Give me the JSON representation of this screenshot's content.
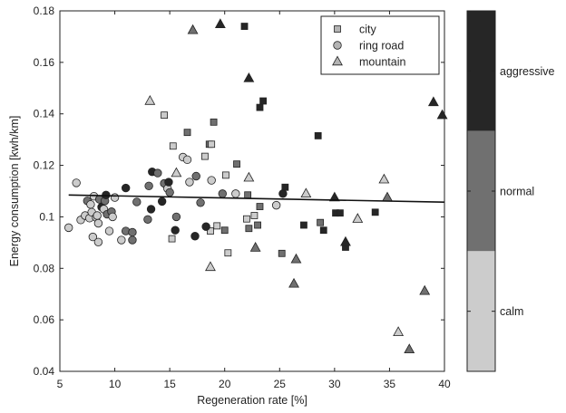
{
  "chart_data": {
    "type": "scatter",
    "xlabel": "Regeneration rate [%]",
    "ylabel": "Energy consumption [kwh/km]",
    "xlim": [
      5,
      40
    ],
    "ylim": [
      0.04,
      0.18
    ],
    "x_ticks": [
      5,
      10,
      15,
      20,
      25,
      30,
      35,
      40
    ],
    "x_tick_labels": [
      "5",
      "10",
      "15",
      "20",
      "25",
      "30",
      "35",
      "40"
    ],
    "y_ticks": [
      0.04,
      0.06,
      0.08,
      0.1,
      0.12,
      0.14,
      0.16,
      0.18
    ],
    "y_tick_labels": [
      "0.04",
      "0.06",
      "0.08",
      "0.1",
      "0.12",
      "0.14",
      "0.16",
      "0.18"
    ],
    "grid": false,
    "legend_position": "top-right",
    "legend": [
      {
        "label": "city",
        "marker": "square"
      },
      {
        "label": "ring road",
        "marker": "circle"
      },
      {
        "label": "mountain",
        "marker": "triangle"
      }
    ],
    "style_colors": {
      "calm": "#cccccc",
      "normal": "#707070",
      "aggressive": "#262626"
    },
    "colorbar": {
      "labels": [
        "aggressive",
        "normal",
        "calm"
      ],
      "colors": [
        "#262626",
        "#707070",
        "#cccccc"
      ]
    },
    "trend_line": {
      "x": [
        5.8,
        40
      ],
      "y": [
        0.1085,
        0.1057
      ]
    },
    "series": [
      {
        "marker": "square",
        "points": [
          {
            "x": 14.5,
            "y": 0.1395,
            "style": "calm"
          },
          {
            "x": 15.3,
            "y": 0.1275,
            "style": "calm"
          },
          {
            "x": 16.6,
            "y": 0.1328,
            "style": "normal"
          },
          {
            "x": 18.2,
            "y": 0.1235,
            "style": "calm"
          },
          {
            "x": 18.6,
            "y": 0.1282,
            "style": "normal"
          },
          {
            "x": 18.8,
            "y": 0.1282,
            "style": "calm"
          },
          {
            "x": 19.0,
            "y": 0.1368,
            "style": "normal"
          },
          {
            "x": 20.1,
            "y": 0.1162,
            "style": "calm"
          },
          {
            "x": 21.1,
            "y": 0.1205,
            "style": "normal"
          },
          {
            "x": 21.8,
            "y": 0.174,
            "style": "aggressive"
          },
          {
            "x": 22.1,
            "y": 0.1085,
            "style": "normal"
          },
          {
            "x": 22.0,
            "y": 0.0992,
            "style": "calm"
          },
          {
            "x": 22.2,
            "y": 0.0955,
            "style": "normal"
          },
          {
            "x": 22.7,
            "y": 0.1005,
            "style": "calm"
          },
          {
            "x": 23.2,
            "y": 0.104,
            "style": "normal"
          },
          {
            "x": 23.0,
            "y": 0.0968,
            "style": "normal"
          },
          {
            "x": 23.2,
            "y": 0.1425,
            "style": "aggressive"
          },
          {
            "x": 23.5,
            "y": 0.145,
            "style": "aggressive"
          },
          {
            "x": 15.2,
            "y": 0.0915,
            "style": "calm"
          },
          {
            "x": 18.7,
            "y": 0.0945,
            "style": "calm"
          },
          {
            "x": 19.3,
            "y": 0.0965,
            "style": "calm"
          },
          {
            "x": 20.0,
            "y": 0.0948,
            "style": "normal"
          },
          {
            "x": 20.3,
            "y": 0.086,
            "style": "calm"
          },
          {
            "x": 25.2,
            "y": 0.0858,
            "style": "normal"
          },
          {
            "x": 25.5,
            "y": 0.1115,
            "style": "aggressive"
          },
          {
            "x": 27.2,
            "y": 0.0968,
            "style": "aggressive"
          },
          {
            "x": 28.5,
            "y": 0.1315,
            "style": "aggressive"
          },
          {
            "x": 28.7,
            "y": 0.0978,
            "style": "normal"
          },
          {
            "x": 29.0,
            "y": 0.0948,
            "style": "aggressive"
          },
          {
            "x": 30.1,
            "y": 0.1015,
            "style": "aggressive"
          },
          {
            "x": 30.5,
            "y": 0.1015,
            "style": "aggressive"
          },
          {
            "x": 31.0,
            "y": 0.0882,
            "style": "aggressive"
          },
          {
            "x": 33.7,
            "y": 0.1018,
            "style": "aggressive"
          }
        ]
      },
      {
        "marker": "circle",
        "points": [
          {
            "x": 5.8,
            "y": 0.0958,
            "style": "calm"
          },
          {
            "x": 6.5,
            "y": 0.1132,
            "style": "calm"
          },
          {
            "x": 6.9,
            "y": 0.0988,
            "style": "calm"
          },
          {
            "x": 7.3,
            "y": 0.1005,
            "style": "calm"
          },
          {
            "x": 7.5,
            "y": 0.1062,
            "style": "normal"
          },
          {
            "x": 7.7,
            "y": 0.0995,
            "style": "calm"
          },
          {
            "x": 7.8,
            "y": 0.1048,
            "style": "calm"
          },
          {
            "x": 7.9,
            "y": 0.1018,
            "style": "calm"
          },
          {
            "x": 8.0,
            "y": 0.0922,
            "style": "calm"
          },
          {
            "x": 8.1,
            "y": 0.108,
            "style": "calm"
          },
          {
            "x": 8.3,
            "y": 0.0998,
            "style": "calm"
          },
          {
            "x": 8.4,
            "y": 0.1005,
            "style": "calm"
          },
          {
            "x": 8.5,
            "y": 0.0975,
            "style": "calm"
          },
          {
            "x": 8.5,
            "y": 0.0902,
            "style": "calm"
          },
          {
            "x": 8.6,
            "y": 0.1068,
            "style": "normal"
          },
          {
            "x": 8.8,
            "y": 0.1038,
            "style": "aggressive"
          },
          {
            "x": 9.0,
            "y": 0.103,
            "style": "calm"
          },
          {
            "x": 9.1,
            "y": 0.1062,
            "style": "normal"
          },
          {
            "x": 9.2,
            "y": 0.1085,
            "style": "aggressive"
          },
          {
            "x": 9.3,
            "y": 0.101,
            "style": "normal"
          },
          {
            "x": 9.5,
            "y": 0.0945,
            "style": "calm"
          },
          {
            "x": 9.7,
            "y": 0.102,
            "style": "normal"
          },
          {
            "x": 9.8,
            "y": 0.1,
            "style": "calm"
          },
          {
            "x": 10.0,
            "y": 0.1075,
            "style": "calm"
          },
          {
            "x": 10.6,
            "y": 0.091,
            "style": "calm"
          },
          {
            "x": 11.0,
            "y": 0.0945,
            "style": "normal"
          },
          {
            "x": 11.0,
            "y": 0.1112,
            "style": "aggressive"
          },
          {
            "x": 11.6,
            "y": 0.094,
            "style": "normal"
          },
          {
            "x": 11.6,
            "y": 0.091,
            "style": "normal"
          },
          {
            "x": 12.0,
            "y": 0.1058,
            "style": "normal"
          },
          {
            "x": 13.0,
            "y": 0.099,
            "style": "normal"
          },
          {
            "x": 13.1,
            "y": 0.112,
            "style": "normal"
          },
          {
            "x": 13.4,
            "y": 0.1175,
            "style": "aggressive"
          },
          {
            "x": 13.3,
            "y": 0.103,
            "style": "aggressive"
          },
          {
            "x": 13.9,
            "y": 0.117,
            "style": "normal"
          },
          {
            "x": 14.3,
            "y": 0.106,
            "style": "aggressive"
          },
          {
            "x": 14.5,
            "y": 0.113,
            "style": "normal"
          },
          {
            "x": 14.8,
            "y": 0.111,
            "style": "calm"
          },
          {
            "x": 14.9,
            "y": 0.1135,
            "style": "aggressive"
          },
          {
            "x": 15.0,
            "y": 0.1095,
            "style": "normal"
          },
          {
            "x": 15.5,
            "y": 0.0948,
            "style": "aggressive"
          },
          {
            "x": 15.6,
            "y": 0.1,
            "style": "normal"
          },
          {
            "x": 16.2,
            "y": 0.1232,
            "style": "calm"
          },
          {
            "x": 16.6,
            "y": 0.1222,
            "style": "calm"
          },
          {
            "x": 16.8,
            "y": 0.1135,
            "style": "calm"
          },
          {
            "x": 17.4,
            "y": 0.1158,
            "style": "normal"
          },
          {
            "x": 17.3,
            "y": 0.0925,
            "style": "aggressive"
          },
          {
            "x": 17.8,
            "y": 0.1055,
            "style": "normal"
          },
          {
            "x": 18.3,
            "y": 0.0962,
            "style": "aggressive"
          },
          {
            "x": 18.8,
            "y": 0.1142,
            "style": "calm"
          },
          {
            "x": 19.8,
            "y": 0.109,
            "style": "normal"
          },
          {
            "x": 21.0,
            "y": 0.109,
            "style": "calm"
          },
          {
            "x": 25.3,
            "y": 0.109,
            "style": "aggressive"
          },
          {
            "x": 24.7,
            "y": 0.1045,
            "style": "calm"
          }
        ]
      },
      {
        "marker": "triangle",
        "points": [
          {
            "x": 13.2,
            "y": 0.145,
            "style": "calm"
          },
          {
            "x": 15.6,
            "y": 0.117,
            "style": "calm"
          },
          {
            "x": 17.1,
            "y": 0.1725,
            "style": "normal"
          },
          {
            "x": 19.6,
            "y": 0.1748,
            "style": "aggressive"
          },
          {
            "x": 18.7,
            "y": 0.0805,
            "style": "calm"
          },
          {
            "x": 22.2,
            "y": 0.1538,
            "style": "aggressive"
          },
          {
            "x": 22.2,
            "y": 0.1152,
            "style": "calm"
          },
          {
            "x": 22.8,
            "y": 0.088,
            "style": "normal"
          },
          {
            "x": 26.5,
            "y": 0.0835,
            "style": "normal"
          },
          {
            "x": 26.3,
            "y": 0.074,
            "style": "normal"
          },
          {
            "x": 27.4,
            "y": 0.109,
            "style": "calm"
          },
          {
            "x": 30.0,
            "y": 0.1075,
            "style": "aggressive"
          },
          {
            "x": 31.0,
            "y": 0.0902,
            "style": "aggressive"
          },
          {
            "x": 32.1,
            "y": 0.0992,
            "style": "calm"
          },
          {
            "x": 34.5,
            "y": 0.1145,
            "style": "calm"
          },
          {
            "x": 34.8,
            "y": 0.1075,
            "style": "normal"
          },
          {
            "x": 35.8,
            "y": 0.0552,
            "style": "calm"
          },
          {
            "x": 36.8,
            "y": 0.0485,
            "style": "normal"
          },
          {
            "x": 38.2,
            "y": 0.0712,
            "style": "normal"
          },
          {
            "x": 39.0,
            "y": 0.1445,
            "style": "aggressive"
          },
          {
            "x": 39.8,
            "y": 0.1395,
            "style": "aggressive"
          }
        ]
      }
    ]
  }
}
